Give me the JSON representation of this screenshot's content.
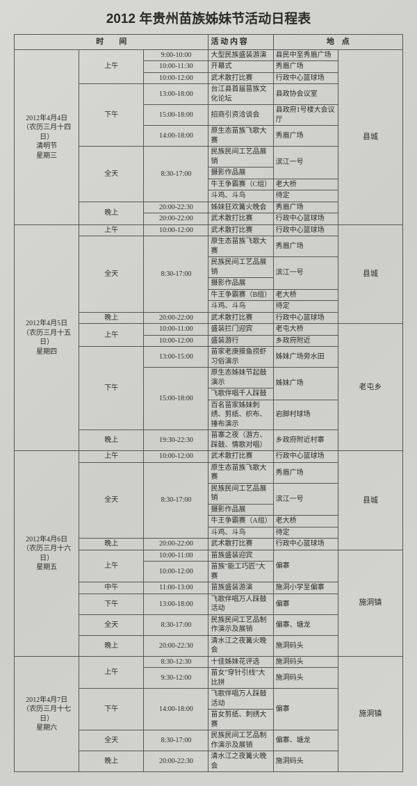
{
  "title": "2012 年贵州苗族姊妹节活动日程表",
  "headers": {
    "time": "时　　间",
    "activity": "活 动 内 容",
    "place": "地　点"
  },
  "days": [
    {
      "date": "2012年4月4日\n（农历三月十四日）\n清明节\n星期三",
      "region": "县城",
      "sessions": [
        {
          "name": "上午",
          "rows": [
            {
              "t": "9:00-10:00",
              "a": "大型民族盛装游演",
              "p": "县民中至秀眉广场"
            },
            {
              "t": "10:00-11:30",
              "a": "开幕式",
              "p": "秀眉广场"
            },
            {
              "t": "10:00-12:00",
              "a": "武术散打比赛",
              "p": "行政中心篮球场"
            }
          ]
        },
        {
          "name": "下午",
          "rows": [
            {
              "t": "13:00-18:00",
              "a": "台江县首届苗族文化论坛",
              "p": "县政协会议室"
            },
            {
              "t": "15:00-18:00",
              "a": "招商引资洽谈会",
              "p": "县政府1号楼大会议厅"
            },
            {
              "t": "14:00-18:00",
              "a": "原生态苗族飞歌大赛",
              "p": "秀眉广场"
            }
          ]
        },
        {
          "name": "全天",
          "timeSpan": "8:30-17:00",
          "rows": [
            {
              "a": "民族民间工艺品展销",
              "p": "滨江一号",
              "pSpan": 2
            },
            {
              "a": "摄影作品展"
            },
            {
              "a": "牛王争霸赛（C组）",
              "p": "老大桥"
            },
            {
              "a": "斗鸡、斗鸟",
              "p": "待定"
            }
          ]
        },
        {
          "name": "晚上",
          "rows": [
            {
              "t": "20:00-22:30",
              "a": "姊妹狂欢篝火晚会",
              "p": "秀眉广场"
            },
            {
              "t": "20:00-22:00",
              "a": "武术散打比赛",
              "p": "行政中心篮球场"
            }
          ]
        }
      ]
    },
    {
      "date": "2012年4月5日\n（农历三月十五日）\n星期四",
      "blocks": [
        {
          "region": "县城",
          "sessions": [
            {
              "name": "上午",
              "rows": [
                {
                  "t": "10:00-12:00",
                  "a": "武术散打比赛",
                  "p": "行政中心篮球场"
                }
              ]
            },
            {
              "name": "全天",
              "timeSpan": "8:30-17:00",
              "rows": [
                {
                  "a": "原生态苗族飞歌大赛",
                  "p": "秀眉广场"
                },
                {
                  "a": "民族民间工艺品展销",
                  "p": "滨江一号",
                  "pSpan": 2
                },
                {
                  "a": "摄影作品展"
                },
                {
                  "a": "牛王争霸赛（B组）",
                  "p": "老大桥"
                },
                {
                  "a": "斗鸡、斗鸟",
                  "p": "待定"
                }
              ]
            },
            {
              "name": "晚上",
              "rows": [
                {
                  "t": "20:00-22:00",
                  "a": "武术散打比赛",
                  "p": "行政中心篮球场"
                }
              ]
            }
          ]
        },
        {
          "region": "老屯乡",
          "sessions": [
            {
              "name": "上午",
              "rows": [
                {
                  "t": "10:00-11:00",
                  "a": "盛装拦门迎宾",
                  "p": "老屯大桥"
                },
                {
                  "t": "10:00-12:00",
                  "a": "盛装游行",
                  "p": "乡政府附近"
                }
              ]
            },
            {
              "name": "下午",
              "rows": [
                {
                  "t": "13:00-15:00",
                  "a": "苗家老庚摸鱼捞虾习俗演示",
                  "p": "姊妹广场旁水田"
                },
                {
                  "t": "15:00-18:00",
                  "tSpan": 3,
                  "a": "原生态姊妹节起鼓演示",
                  "p": "姊妹广场",
                  "pSpan": 2
                },
                {
                  "a": "飞歌伴唱千人踩鼓"
                },
                {
                  "a": "百名苗家姊妹刺绣、剪纸、织布、捶布演示",
                  "p": "岩脚村球场"
                }
              ]
            },
            {
              "name": "晚上",
              "rows": [
                {
                  "t": "19:30-22:30",
                  "a": "苗寨之夜（游方、踩鼓、情歌对唱）",
                  "p": "乡政府附近村寨"
                }
              ]
            }
          ]
        }
      ]
    },
    {
      "date": "2012年4月6日\n（农历三月十六日）\n星期五",
      "blocks": [
        {
          "region": "县城",
          "sessions": [
            {
              "name": "上午",
              "rows": [
                {
                  "t": "10:00-12:00",
                  "a": "武术散打比赛",
                  "p": "行政中心篮球场"
                }
              ]
            },
            {
              "name": "全天",
              "timeSpan": "8:30-17:00",
              "rows": [
                {
                  "a": "原生态苗族飞歌大赛",
                  "p": "秀眉广场"
                },
                {
                  "a": "民族民间工艺品展销",
                  "p": "滨江一号",
                  "pSpan": 2
                },
                {
                  "a": "摄影作品展"
                },
                {
                  "a": "牛王争霸赛（A组）",
                  "p": "老大桥"
                },
                {
                  "a": "斗鸡、斗鸟",
                  "p": "待定"
                }
              ]
            },
            {
              "name": "晚上",
              "rows": [
                {
                  "t": "20:00-22:00",
                  "a": "武术散打比赛",
                  "p": "行政中心篮球场"
                }
              ]
            }
          ]
        },
        {
          "region": "施洞镇",
          "sessions": [
            {
              "name": "上午",
              "rows": [
                {
                  "t": "10:00-11:00",
                  "a": "苗族盛装迎宾",
                  "p": "偏寨",
                  "pSpan": 2
                },
                {
                  "t": "10:00-12:00",
                  "a": "苗族\"能工巧匠\"大赛"
                }
              ]
            },
            {
              "name": "中午",
              "rows": [
                {
                  "t": "11:00-13:00",
                  "a": "苗族盛装游演",
                  "p": "施洞小学至偏寨"
                }
              ]
            },
            {
              "name": "下午",
              "rows": [
                {
                  "t": "13:00-18:00",
                  "a": "飞歌伴唱万人踩鼓活动",
                  "p": "偏寨"
                }
              ]
            },
            {
              "name": "全天",
              "rows": [
                {
                  "t": "8:30-17:00",
                  "a": "民族民间工艺品制作演示及展销",
                  "p": "偏寨、塘龙"
                }
              ]
            },
            {
              "name": "晚上",
              "rows": [
                {
                  "t": "20:00-22:30",
                  "a": "清水江之夜篝火晚会",
                  "p": "施洞码头"
                }
              ]
            }
          ]
        }
      ]
    },
    {
      "date": "2012年4月7日\n（农历三月十七日）\n星期六",
      "region": "施洞镇",
      "sessions": [
        {
          "name": "上午",
          "rows": [
            {
              "t": "8:30-12:30",
              "a": "十佳姊妹花评选",
              "p": "施洞码头"
            },
            {
              "t": "9:30-12:00",
              "a": "苗女\"穿针引线\"大比拼",
              "p": "施洞码头"
            }
          ]
        },
        {
          "name": "下午",
          "timeSpan": "14:00-18:00",
          "rows": [
            {
              "a": "飞歌伴唱万人踩鼓活动",
              "p": "偏寨",
              "pSpan": 2
            },
            {
              "a": "苗女剪纸、刺绣大赛"
            }
          ]
        },
        {
          "name": "全天",
          "rows": [
            {
              "t": "8:30-17:00",
              "a": "民族民间工艺品制作演示及展销",
              "p": "偏寨、塘龙"
            }
          ]
        },
        {
          "name": "晚上",
          "rows": [
            {
              "t": "20:00-22:30",
              "a": "清水江之夜篝火晚会",
              "p": "施洞码头"
            }
          ]
        }
      ]
    }
  ]
}
